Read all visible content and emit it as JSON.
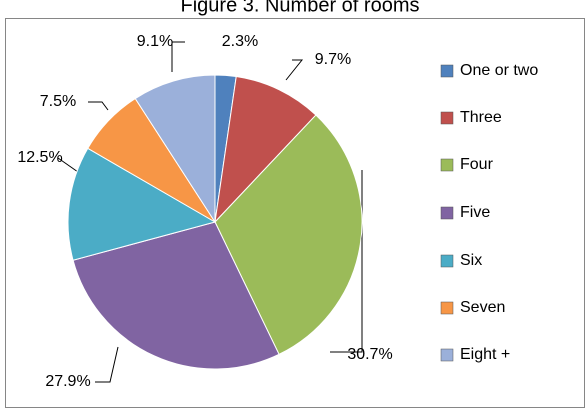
{
  "chart_data": {
    "type": "pie",
    "title": "Figure 3. Number of rooms",
    "categories": [
      "One or two",
      "Three",
      "Four",
      "Five",
      "Six",
      "Seven",
      "Eight +"
    ],
    "values": [
      2.3,
      9.7,
      30.7,
      27.9,
      12.5,
      7.5,
      9.1
    ],
    "value_labels": [
      "2.3%",
      "9.7%",
      "30.7%",
      "27.9%",
      "12.5%",
      "7.5%",
      "9.1%"
    ],
    "colors": [
      "#4f81bd",
      "#c0504d",
      "#9bbb59",
      "#8064a2",
      "#4bacc6",
      "#f79646",
      "#9bb0da"
    ],
    "legend": "right"
  }
}
